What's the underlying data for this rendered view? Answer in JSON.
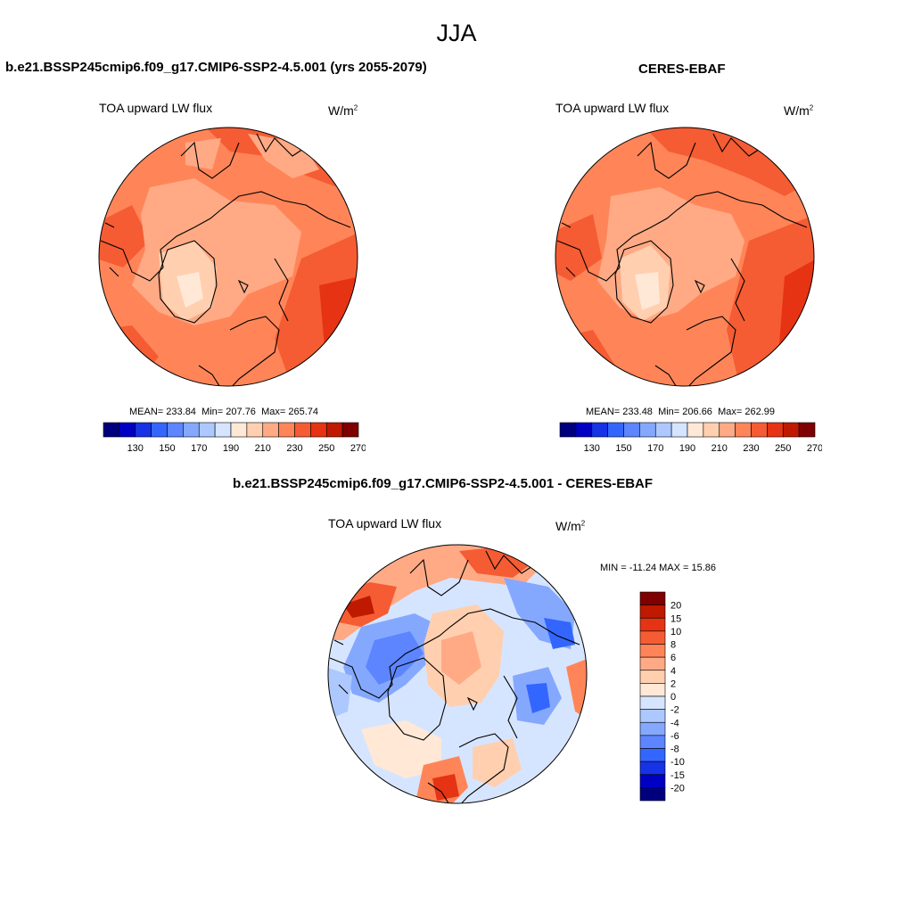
{
  "page": {
    "season": "JJA"
  },
  "panels": {
    "model": {
      "title": "b.e21.BSSP245cmip6.f09_g17.CMIP6-SSP2-4.5.001 (yrs 2055-2079)",
      "variable": "TOA upward LW flux",
      "units_base": "W/m",
      "units_exp": "2",
      "stats": {
        "mean_label": "MEAN=",
        "mean": "233.84",
        "min_label": "Min=",
        "min": "207.76",
        "max_label": "Max=",
        "max": "265.74"
      }
    },
    "obs": {
      "title": "CERES-EBAF",
      "variable": "TOA upward LW flux",
      "units_base": "W/m",
      "units_exp": "2",
      "stats": {
        "mean_label": "MEAN=",
        "mean": "233.48",
        "min_label": "Min=",
        "min": "206.66",
        "max_label": "Max=",
        "max": "262.99"
      }
    },
    "diff": {
      "title": "b.e21.BSSP245cmip6.f09_g17.CMIP6-SSP2-4.5.001 - CERES-EBAF",
      "variable": "TOA upward LW flux",
      "units_base": "W/m",
      "units_exp": "2",
      "minmax": "MIN = -11.24 MAX =  15.86"
    }
  },
  "chart_data": [
    {
      "type": "heatmap",
      "projection": "north-polar-stereographic",
      "title": "TOA upward LW flux",
      "units": "W/m2",
      "mean": 233.84,
      "min": 207.76,
      "max": 265.74,
      "colorbar": {
        "orientation": "horizontal",
        "tick_labels": [
          "130",
          "150",
          "170",
          "190",
          "210",
          "230",
          "250",
          "270"
        ],
        "levels": [
          120,
          130,
          140,
          150,
          160,
          170,
          180,
          190,
          200,
          210,
          220,
          230,
          240,
          250,
          260,
          270
        ],
        "colors": [
          "#00007f",
          "#0000c4",
          "#1733e6",
          "#3366ff",
          "#5c85ff",
          "#85a8ff",
          "#adc8ff",
          "#d6e5ff",
          "#ffe8d6",
          "#ffcfb0",
          "#ffaa85",
          "#ff8559",
          "#f55c33",
          "#e63314",
          "#bf1a00",
          "#7f0000"
        ]
      }
    },
    {
      "type": "heatmap",
      "projection": "north-polar-stereographic",
      "title": "TOA upward LW flux",
      "units": "W/m2",
      "mean": 233.48,
      "min": 206.66,
      "max": 262.99,
      "colorbar": {
        "orientation": "horizontal",
        "tick_labels": [
          "130",
          "150",
          "170",
          "190",
          "210",
          "230",
          "250",
          "270"
        ],
        "levels": [
          120,
          130,
          140,
          150,
          160,
          170,
          180,
          190,
          200,
          210,
          220,
          230,
          240,
          250,
          260,
          270
        ],
        "colors": [
          "#00007f",
          "#0000c4",
          "#1733e6",
          "#3366ff",
          "#5c85ff",
          "#85a8ff",
          "#adc8ff",
          "#d6e5ff",
          "#ffe8d6",
          "#ffcfb0",
          "#ffaa85",
          "#ff8559",
          "#f55c33",
          "#e63314",
          "#bf1a00",
          "#7f0000"
        ]
      }
    },
    {
      "type": "heatmap",
      "projection": "north-polar-stereographic",
      "title": "TOA upward LW flux",
      "units": "W/m2",
      "min": -11.24,
      "max": 15.86,
      "colorbar": {
        "orientation": "vertical",
        "tick_labels": [
          "20",
          "15",
          "10",
          "8",
          "6",
          "4",
          "2",
          "0",
          "-2",
          "-4",
          "-6",
          "-8",
          "-10",
          "-15",
          "-20"
        ],
        "colors": [
          "#7f0000",
          "#bf1a00",
          "#e63314",
          "#f55c33",
          "#ff8559",
          "#ffaa85",
          "#ffcfb0",
          "#ffe8d6",
          "#d6e5ff",
          "#adc8ff",
          "#85a8ff",
          "#5c85ff",
          "#3366ff",
          "#1733e6",
          "#0000c4",
          "#00007f"
        ]
      }
    }
  ]
}
